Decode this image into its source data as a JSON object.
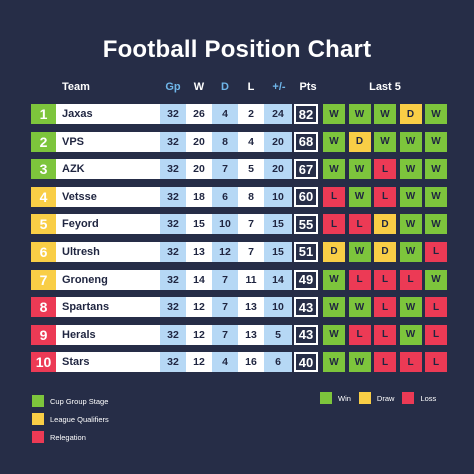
{
  "title": "Football Position Chart",
  "headers": {
    "team": "Team",
    "gp": "Gp",
    "w": "W",
    "d": "D",
    "l": "L",
    "plus_minus": "+/-",
    "pts": "Pts",
    "last5": "Last 5"
  },
  "colors": {
    "background": "#262d47",
    "cup_group_stage": "#7dc53c",
    "league_qualifiers": "#f9ce46",
    "relegation": "#ec3a55",
    "win": "#7dc53c",
    "draw": "#f9ce46",
    "loss": "#ec3a55"
  },
  "rows": [
    {
      "pos": "1",
      "zone": "cup_group_stage",
      "team": "Jaxas",
      "gp": "32",
      "w": "26",
      "d": "4",
      "l": "2",
      "pm": "24",
      "pts": "82",
      "last5": [
        "W",
        "W",
        "W",
        "D",
        "W"
      ]
    },
    {
      "pos": "2",
      "zone": "cup_group_stage",
      "team": "VPS",
      "gp": "32",
      "w": "20",
      "d": "8",
      "l": "4",
      "pm": "20",
      "pts": "68",
      "last5": [
        "W",
        "D",
        "W",
        "W",
        "W"
      ]
    },
    {
      "pos": "3",
      "zone": "cup_group_stage",
      "team": "AZK",
      "gp": "32",
      "w": "20",
      "d": "7",
      "l": "5",
      "pm": "20",
      "pts": "67",
      "last5": [
        "W",
        "W",
        "L",
        "W",
        "W"
      ]
    },
    {
      "pos": "4",
      "zone": "league_qualifiers",
      "team": "Vetsse",
      "gp": "32",
      "w": "18",
      "d": "6",
      "l": "8",
      "pm": "10",
      "pts": "60",
      "last5": [
        "L",
        "W",
        "L",
        "W",
        "W"
      ]
    },
    {
      "pos": "5",
      "zone": "league_qualifiers",
      "team": "Feyord",
      "gp": "32",
      "w": "15",
      "d": "10",
      "l": "7",
      "pm": "15",
      "pts": "55",
      "last5": [
        "L",
        "L",
        "D",
        "W",
        "W"
      ]
    },
    {
      "pos": "6",
      "zone": "league_qualifiers",
      "team": "Ultresh",
      "gp": "32",
      "w": "13",
      "d": "12",
      "l": "7",
      "pm": "15",
      "pts": "51",
      "last5": [
        "D",
        "W",
        "D",
        "W",
        "L"
      ]
    },
    {
      "pos": "7",
      "zone": "league_qualifiers",
      "team": "Groneng",
      "gp": "32",
      "w": "14",
      "d": "7",
      "l": "11",
      "pm": "14",
      "pts": "49",
      "last5": [
        "W",
        "L",
        "L",
        "L",
        "W"
      ]
    },
    {
      "pos": "8",
      "zone": "relegation",
      "team": "Spartans",
      "gp": "32",
      "w": "12",
      "d": "7",
      "l": "13",
      "pm": "10",
      "pts": "43",
      "last5": [
        "W",
        "W",
        "L",
        "W",
        "L"
      ]
    },
    {
      "pos": "9",
      "zone": "relegation",
      "team": "Herals",
      "gp": "32",
      "w": "12",
      "d": "7",
      "l": "13",
      "pm": "5",
      "pts": "43",
      "last5": [
        "W",
        "L",
        "L",
        "W",
        "L"
      ]
    },
    {
      "pos": "10",
      "zone": "relegation",
      "team": "Stars",
      "gp": "32",
      "w": "12",
      "d": "4",
      "l": "16",
      "pm": "6",
      "pts": "40",
      "last5": [
        "W",
        "W",
        "L",
        "L",
        "L"
      ]
    }
  ],
  "legend_zones": [
    {
      "key": "cup_group_stage",
      "label": "Cup Group Stage"
    },
    {
      "key": "league_qualifiers",
      "label": "League Qualifiers"
    },
    {
      "key": "relegation",
      "label": "Relegation"
    }
  ],
  "legend_results": [
    {
      "key": "win",
      "label": "Win"
    },
    {
      "key": "draw",
      "label": "Draw"
    },
    {
      "key": "loss",
      "label": "Loss"
    }
  ]
}
